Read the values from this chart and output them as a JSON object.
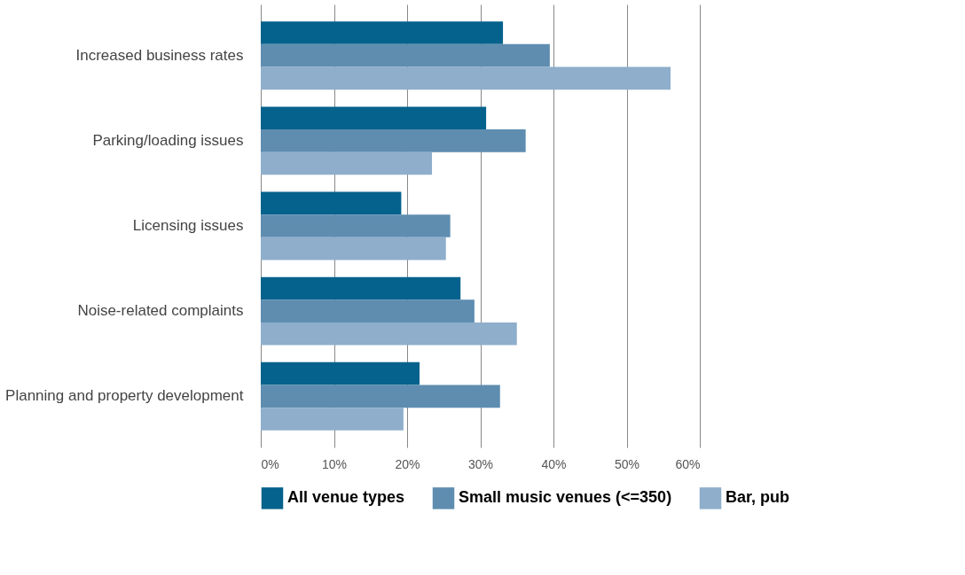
{
  "chart_data": {
    "type": "bar",
    "orientation": "horizontal",
    "categories": [
      "Increased business rates",
      "Parking/loading issues",
      "Licensing issues",
      "Noise-related complaints",
      "Planning and property development"
    ],
    "series": [
      {
        "name": "All venue types",
        "color": "#05628c",
        "values": [
          33.1,
          30.8,
          19.2,
          27.3,
          21.7
        ]
      },
      {
        "name": "Small music venues (<=350)",
        "color": "#5e8db0",
        "values": [
          39.5,
          36.2,
          25.9,
          29.2,
          32.7
        ]
      },
      {
        "name": "Bar, pub",
        "color": "#8eaecb",
        "values": [
          56.0,
          23.4,
          25.3,
          35.0,
          19.5
        ]
      }
    ],
    "xlim": [
      0,
      60
    ],
    "xticks": [
      {
        "value": 0,
        "label": "0%"
      },
      {
        "value": 10,
        "label": "10%"
      },
      {
        "value": 20,
        "label": "20%"
      },
      {
        "value": 30,
        "label": "30%"
      },
      {
        "value": 40,
        "label": "40%"
      },
      {
        "value": 50,
        "label": "50%"
      },
      {
        "value": 60,
        "label": "60%"
      }
    ],
    "grid": "x",
    "legend": "bottom"
  }
}
